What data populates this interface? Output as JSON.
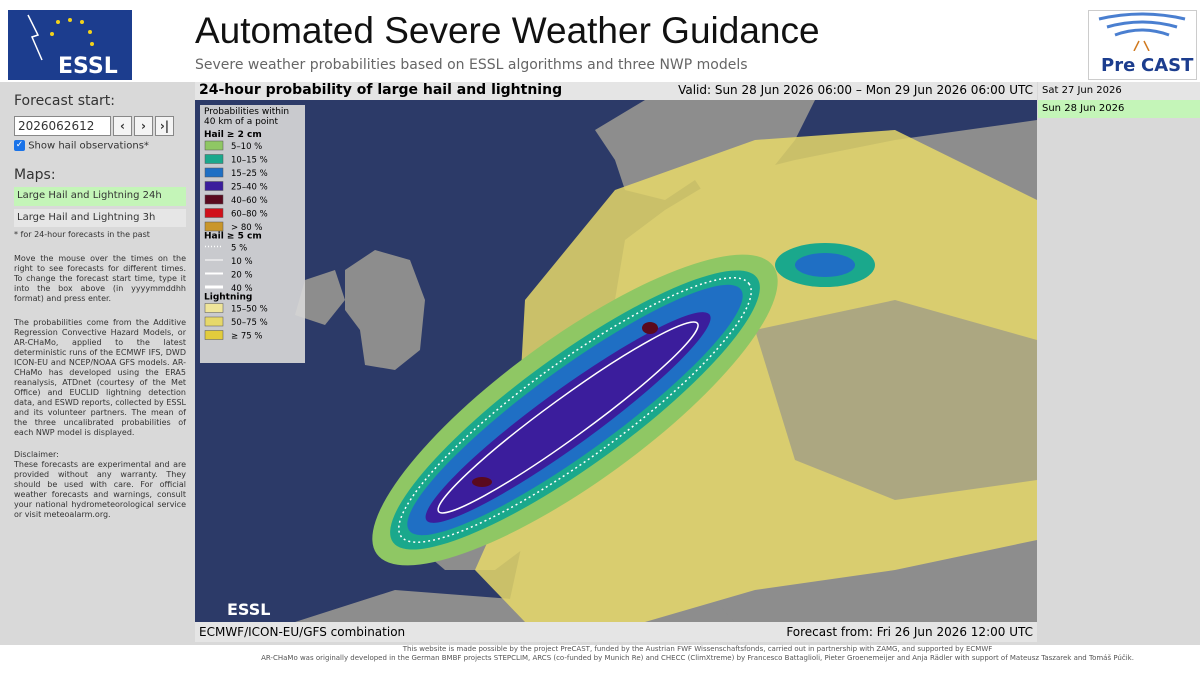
{
  "header": {
    "title": "Automated Severe Weather Guidance",
    "subtitle": "Severe weather probabilities based on ESSL algorithms and three NWP models",
    "logo_left": "ESSL",
    "logo_right": [
      "Pre",
      "CAST"
    ]
  },
  "sidebar": {
    "forecast_start_label": "Forecast start:",
    "input_value": "2026062612",
    "buttons": [
      "‹",
      "›",
      "›|"
    ],
    "checkbox_label": "Show hail observations*",
    "maps_label": "Maps:",
    "maps": [
      "Large Hail and Lightning 24h",
      "Large Hail and Lightning 3h"
    ],
    "footnote": "* for 24-hour forecasts in the past",
    "paragraphs": [
      "Move the mouse over the times on the right to see forecasts for different times. To change the forecast start time, type it into the box above (in yyyymmddhh format) and press enter.",
      "The probabilities come from the Additive Regression Convective Hazard Models, or AR-CHaMo, applied to the latest deterministic runs of the ECMWF IFS, DWD ICON-EU and NCEP/NOAA GFS models. AR-CHaMo has developed using the ERA5 reanalysis, ATDnet (courtesy of the Met Office) and EUCLID lightning detection data, and ESWD reports, collected by ESSL and its volunteer partners. The mean of the three uncalibrated probabilities of each NWP model is displayed.",
      "Disclaimer:",
      "These forecasts are experimental and are provided without any warranty. They should be used with care. For official weather forecasts and warnings, consult your national hydrometeorological service or visit meteoalarm.org."
    ]
  },
  "map_panel": {
    "title": "24-hour probability of large hail and lightning",
    "valid": "Valid: Sun 28 Jun 2026 06:00 – Mon 29 Jun 2026 06:00 UTC",
    "footer_left": "ECMWF/ICON-EU/GFS combination",
    "footer_right": "Forecast from: Fri 26 Jun 2026 12:00 UTC",
    "watermark": "ESSL",
    "legend": {
      "header": [
        "Probabilities within",
        "40 km of a point"
      ],
      "sections": [
        {
          "title": "Hail ≥ 2 cm",
          "items": [
            {
              "label": "5–10 %",
              "color": "#8fc764"
            },
            {
              "label": "10–15 %",
              "color": "#1aa88c"
            },
            {
              "label": "15–25 %",
              "color": "#1f6fc4"
            },
            {
              "label": "25–40 %",
              "color": "#3b1d9c"
            },
            {
              "label": "40–60 %",
              "color": "#5a0a1e"
            },
            {
              "label": "60–80 %",
              "color": "#d0101a"
            },
            {
              "label": "> 80 %",
              "color": "#c9962a"
            }
          ]
        },
        {
          "title": "Hail ≥ 5 cm",
          "items": [
            {
              "label": "5 %",
              "color": "dotted"
            },
            {
              "label": "10 %",
              "color": "thin"
            },
            {
              "label": "20 %",
              "color": "medium"
            },
            {
              "label": "40 %",
              "color": "thick"
            }
          ]
        },
        {
          "title": "Lightning",
          "items": [
            {
              "label": "15–50 %",
              "color": "#efe59a"
            },
            {
              "label": "50–75 %",
              "color": "#e6d86a"
            },
            {
              "label": "≥ 75 %",
              "color": "#e2cc3c"
            }
          ]
        }
      ]
    }
  },
  "date_list": [
    "Sat 27 Jun 2026",
    "Sun 28 Jun 2026"
  ],
  "footer": [
    "This website is made possible by the project PreCAST, funded by the Austrian FWF Wissenschaftsfonds, carried out in partnership with ZAMG, and supported by ECMWF",
    "AR-CHaMo was originally developed in the German BMBF projects STEPCLIM, ARCS (co-funded by Munich Re) and CHECC (ClimXtreme) by Francesco Battaglioli, Pieter Groenemeijer and Anja Rädler with support of Mateusz Taszarek and Tomáš Púčik."
  ]
}
